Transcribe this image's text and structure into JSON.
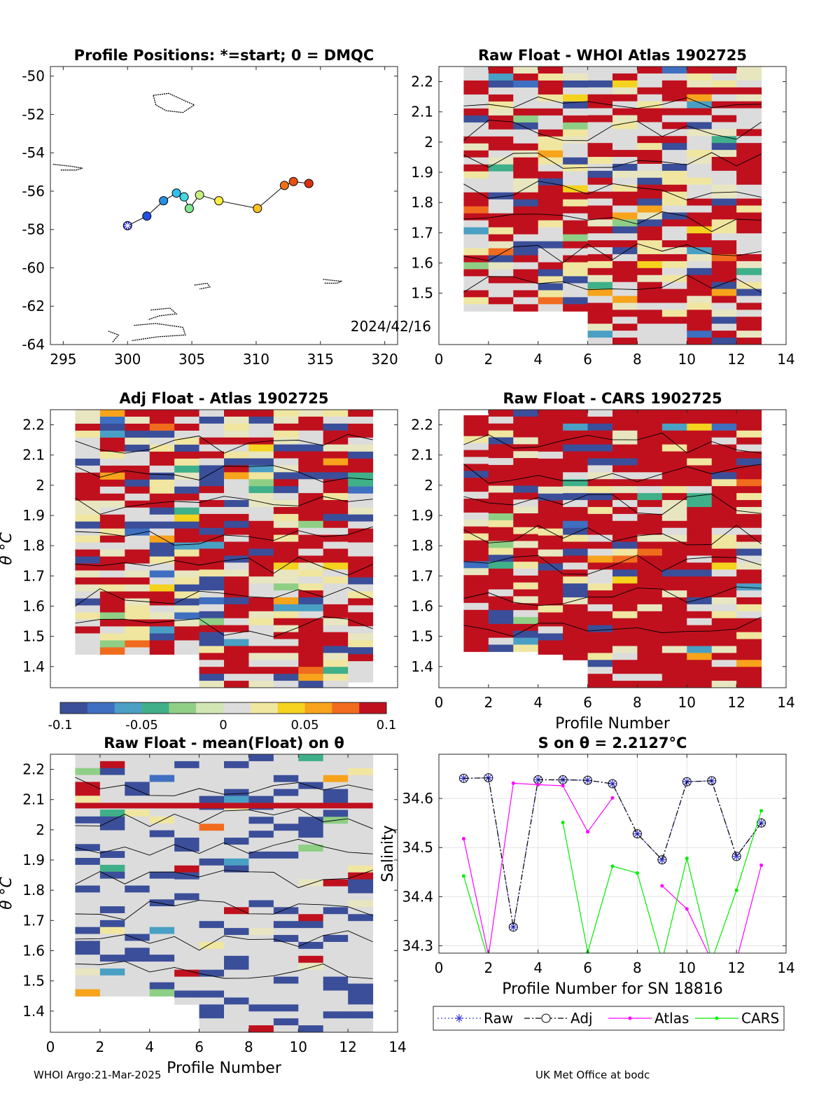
{
  "footer": {
    "left": "WHOI Argo:21-Mar-2025",
    "right": "UK Met Office at bodc"
  },
  "colorbar": {
    "ticks": [
      "-0.1",
      "-0.05",
      "0",
      "0.05",
      "0.1"
    ],
    "colors": [
      "#3b4e99",
      "#3e6fc0",
      "#4a9fc4",
      "#3fb089",
      "#8fcf85",
      "#d2e6b4",
      "#dcdcdc",
      "#f0e6a0",
      "#f4d21e",
      "#f7a31c",
      "#f16b1e",
      "#c0101e"
    ]
  },
  "chart_data": [
    {
      "type": "scatter",
      "title": "Profile Positions: *=start; 0 = DMQC",
      "xlim": [
        294,
        321
      ],
      "ylim": [
        -64,
        -49.5
      ],
      "xticks": [
        295,
        300,
        305,
        310,
        315,
        320
      ],
      "yticks": [
        -64,
        -62,
        -60,
        -58,
        -56,
        -54,
        -52,
        -50
      ],
      "date_label": "2024/42/16",
      "track_x": [
        300,
        301.5,
        302.8,
        303.8,
        304.4,
        304.8,
        305.6,
        307.1,
        310.1,
        312.2,
        312.9,
        314.1
      ],
      "track_y": [
        -57.8,
        -57.3,
        -56.5,
        -56.1,
        -56.3,
        -56.9,
        -56.2,
        -56.5,
        -56.9,
        -55.7,
        -55.5,
        -55.6
      ],
      "colors": [
        "#3030d8",
        "#1f50e0",
        "#2590e6",
        "#30c0f0",
        "#45d8e0",
        "#80e890",
        "#c8f080",
        "#f8f040",
        "#f8c020",
        "#f07018",
        "#e85010",
        "#e03010"
      ]
    },
    {
      "type": "heatmap",
      "title": "Raw Float - WHOI Atlas  1902725",
      "xlim": [
        0,
        14
      ],
      "ylim": [
        1.33,
        2.25
      ],
      "xticks": [
        0,
        2,
        4,
        6,
        8,
        10,
        12,
        14
      ],
      "yticks": [
        1.5,
        1.6,
        1.7,
        1.8,
        1.9,
        2,
        2.1,
        2.2
      ],
      "xlabel": ""
    },
    {
      "type": "heatmap",
      "title": "Adj Float - Atlas  1902725",
      "xlim": [
        0,
        14
      ],
      "ylim": [
        1.33,
        2.25
      ],
      "xticks": [],
      "yticks": [
        1.4,
        1.5,
        1.6,
        1.7,
        1.8,
        1.9,
        2,
        2.1,
        2.2
      ],
      "ylabel": "θ °C"
    },
    {
      "type": "heatmap",
      "title": "Raw Float - CARS  1902725",
      "xlim": [
        0,
        14
      ],
      "ylim": [
        1.33,
        2.25
      ],
      "xticks": [
        0,
        2,
        4,
        6,
        8,
        10,
        12,
        14
      ],
      "yticks": [
        1.4,
        1.5,
        1.6,
        1.7,
        1.8,
        1.9,
        2,
        2.1,
        2.2
      ],
      "xlabel": "Profile Number"
    },
    {
      "type": "heatmap",
      "title": "Raw Float - mean(Float) on θ",
      "xlim": [
        0,
        14
      ],
      "ylim": [
        1.33,
        2.25
      ],
      "xticks": [
        0,
        2,
        4,
        6,
        8,
        10,
        12,
        14
      ],
      "yticks": [
        1.4,
        1.5,
        1.6,
        1.7,
        1.8,
        1.9,
        2,
        2.1,
        2.2
      ],
      "xlabel": "Profile Number",
      "ylabel": "θ °C"
    },
    {
      "type": "line",
      "title": "S on θ = 2.2127°C",
      "xlabel": "Profile Number for SN 18816",
      "ylabel": "Salinity",
      "xlim": [
        0,
        14
      ],
      "ylim": [
        34.285,
        34.69
      ],
      "xticks": [
        0,
        2,
        4,
        6,
        8,
        10,
        12,
        14
      ],
      "yticks": [
        34.3,
        34.4,
        34.5,
        34.6
      ],
      "x": [
        1,
        2,
        3,
        4,
        5,
        6,
        7,
        8,
        9,
        10,
        11,
        12,
        13
      ],
      "legend": [
        "Raw",
        "Adj",
        "Atlas",
        "CARS"
      ],
      "series": [
        {
          "name": "Raw",
          "color": "#3b3bd6",
          "values": [
            34.641,
            34.642,
            34.338,
            34.638,
            34.638,
            34.637,
            34.63,
            34.528,
            34.475,
            34.634,
            34.636,
            34.482,
            34.55
          ]
        },
        {
          "name": "Adj",
          "color": "#000000",
          "values": [
            34.641,
            34.642,
            34.338,
            34.638,
            34.638,
            34.637,
            34.63,
            34.528,
            34.475,
            34.634,
            34.636,
            34.482,
            34.55
          ]
        },
        {
          "name": "Atlas",
          "color": "#ff00ff",
          "values": [
            34.518,
            34.28,
            34.631,
            34.628,
            34.626,
            34.532,
            34.601,
            null,
            34.422,
            34.375,
            34.27,
            34.27,
            34.464
          ]
        },
        {
          "name": "CARS",
          "color": "#00ee00",
          "values": [
            34.442,
            34.27,
            null,
            null,
            34.551,
            34.287,
            34.462,
            34.448,
            34.27,
            34.478,
            34.27,
            34.413,
            34.575
          ]
        }
      ]
    }
  ]
}
